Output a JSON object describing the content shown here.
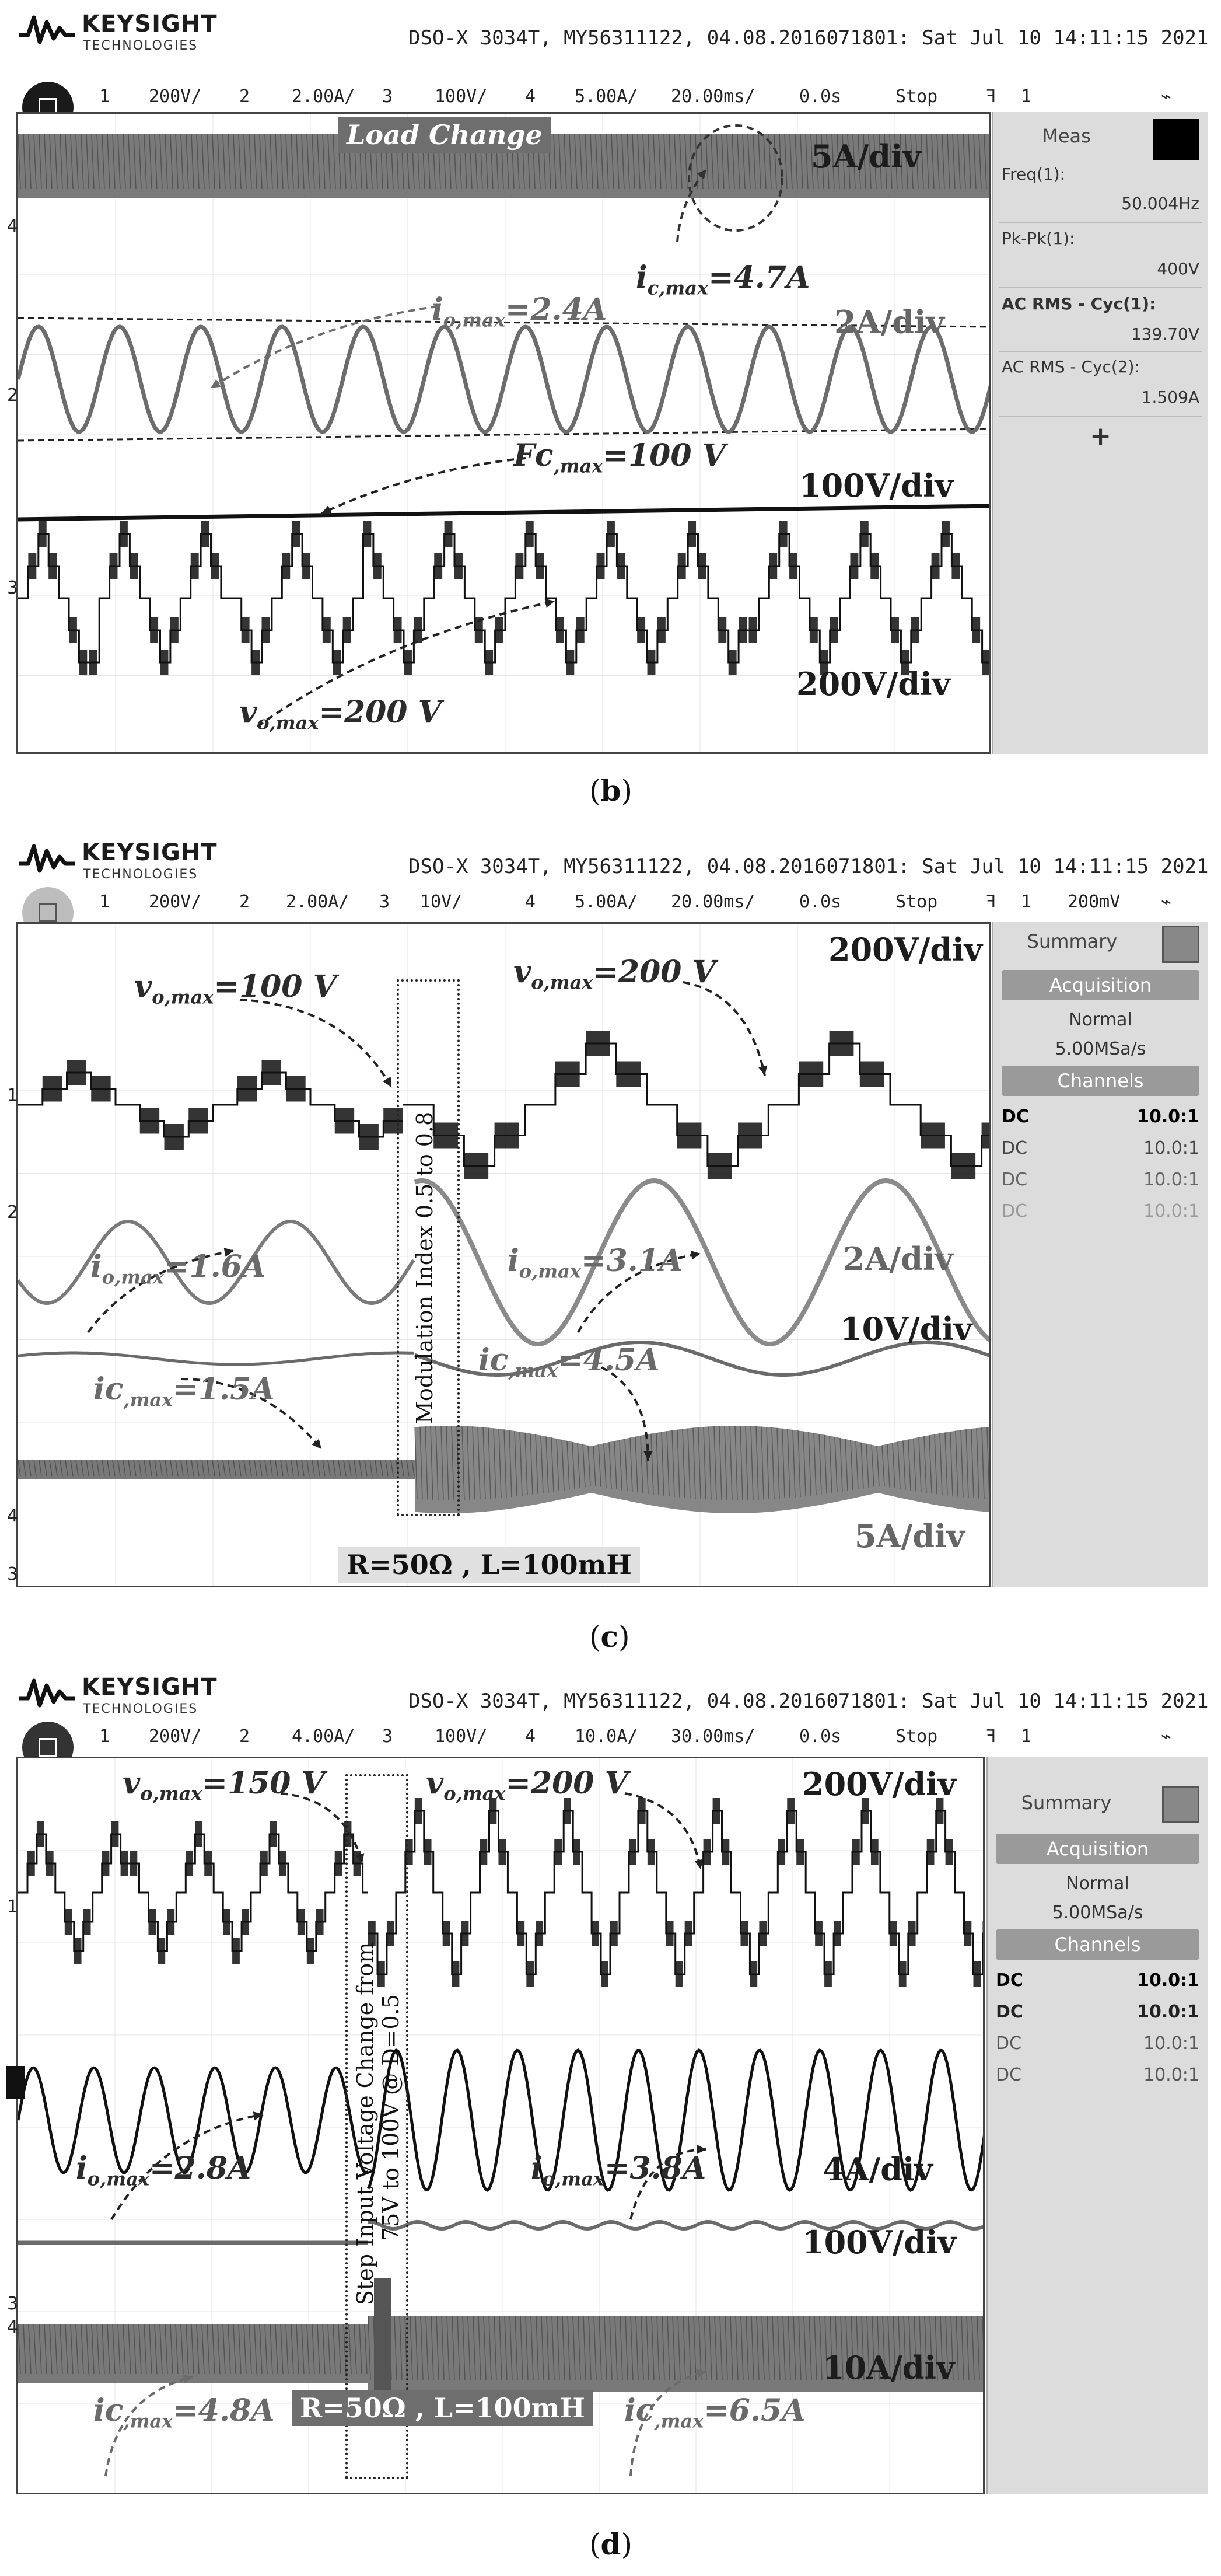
{
  "brand": {
    "name": "KEYSIGHT",
    "sub": "TECHNOLOGIES"
  },
  "panels": [
    {
      "caption": "b",
      "status": "DSO-X 3034T, MY56311122, 04.08.2016071801: Sat Jul 10 14:11:15 2021",
      "channels": {
        "c1": "1",
        "c1_scale": "200V/",
        "c2": "2",
        "c2_scale": "2.00A/",
        "c3": "3",
        "c3_scale": "100V/",
        "c4": "4",
        "c4_scale": "5.00A/",
        "timebase": "20.00ms/",
        "delay": "0.0s",
        "run_state": "Stop",
        "trig": "1"
      },
      "title_box": "Load Change",
      "scales": {
        "s1": "5A/div",
        "s2": "2A/div",
        "s3": "100V/div",
        "s4": "200V/div"
      },
      "annotations": {
        "a1_main": "i",
        "a1_sub": "c,max",
        "a1_val": "=4.7A",
        "a2_main": "i",
        "a2_sub": "o,max",
        "a2_val": "=2.4A",
        "a3_main": "Fc",
        "a3_sub": ",max",
        "a3_val": "=100 V",
        "a4_main": "v",
        "a4_sub": "o,max",
        "a4_val": "=200 V"
      },
      "sidebar": {
        "title": "Meas",
        "freq_label": "Freq(1):",
        "freq_val": "50.004Hz",
        "pk_label": "Pk-Pk(1):",
        "pk_val": "400V",
        "rms1_label": "AC RMS - Cyc(1):",
        "rms1_val": "139.70V",
        "rms2_label": "AC RMS - Cyc(2):",
        "rms2_val": "1.509A",
        "add": "+"
      }
    },
    {
      "caption": "c",
      "status": "DSO-X 3034T, MY56311122, 04.08.2016071801: Sat Jul 10 14:11:15 2021",
      "channels": {
        "c1": "1",
        "c1_scale": "200V/",
        "c2": "2",
        "c2_scale": "2.00A/",
        "c3": "3",
        "c3_scale": "10V/",
        "c4": "4",
        "c4_scale": "5.00A/",
        "timebase": "20.00ms/",
        "delay": "0.0s",
        "run_state": "Stop",
        "trig": "1",
        "trig_level": "200mV"
      },
      "scales": {
        "s1": "200V/div",
        "s2": "2A/div",
        "s3": "10V/div",
        "s4": "5A/div"
      },
      "annotations": {
        "a1_main": "v",
        "a1_sub": "o,max",
        "a1_val": "=100 V",
        "a2_main": "v",
        "a2_sub": "o,max",
        "a2_val": "=200 V",
        "a3_main": "i",
        "a3_sub": "o,max",
        "a3_val": "=1.6A",
        "a4_main": "i",
        "a4_sub": "o,max",
        "a4_val": "=3.1A",
        "a5_main": "ic",
        "a5_sub": ",max",
        "a5_val": "=1.5A",
        "a6_main": "ic",
        "a6_sub": ",max",
        "a6_val": "=4.5A"
      },
      "vertical_note": "Modulation Index 0.5 to 0.8",
      "load_box": "R=50Ω , L=100mH",
      "sidebar": {
        "title": "Summary",
        "acq": "Acquisition",
        "mode": "Normal",
        "rate": "5.00MSa/s",
        "channels": "Channels",
        "rows": [
          {
            "c": "DC",
            "v": "10.0:1"
          },
          {
            "c": "DC",
            "v": "10.0:1"
          },
          {
            "c": "DC",
            "v": "10.0:1"
          },
          {
            "c": "DC",
            "v": "10.0:1"
          }
        ]
      }
    },
    {
      "caption": "d",
      "status": "DSO-X 3034T, MY56311122, 04.08.2016071801: Sat Jul 10 14:11:15 2021",
      "channels": {
        "c1": "1",
        "c1_scale": "200V/",
        "c2": "2",
        "c2_scale": "4.00A/",
        "c3": "3",
        "c3_scale": "100V/",
        "c4": "4",
        "c4_scale": "10.0A/",
        "timebase": "30.00ms/",
        "delay": "0.0s",
        "run_state": "Stop",
        "trig": "1"
      },
      "scales": {
        "s1": "200V/div",
        "s2": "4A/div",
        "s3": "100V/div",
        "s4": "10A/div"
      },
      "annotations": {
        "a1_main": "v",
        "a1_sub": "o,max",
        "a1_val": "=150 V",
        "a2_main": "v",
        "a2_sub": "o,max",
        "a2_val": "=200 V",
        "a3_main": "i",
        "a3_sub": "o,max",
        "a3_val": "=2.8A",
        "a4_main": "i",
        "a4_sub": "o,max",
        "a4_val": "=3.8A",
        "a5_main": "ic",
        "a5_sub": ",max",
        "a5_val": "=4.8A",
        "a6_main": "ic",
        "a6_sub": ",max",
        "a6_val": "=6.5A"
      },
      "vertical_note_1": "Step Input Voltage Change from",
      "vertical_note_2": "75V to 100V @ D=0.5",
      "load_box": "R=50Ω , L=100mH",
      "sidebar": {
        "title": "Summary",
        "acq": "Acquisition",
        "mode": "Normal",
        "rate": "5.00MSa/s",
        "channels": "Channels",
        "rows": [
          {
            "c": "DC",
            "v": "10.0:1"
          },
          {
            "c": "DC",
            "v": "10.0:1"
          },
          {
            "c": "DC",
            "v": "10.0:1"
          },
          {
            "c": "DC",
            "v": "10.0:1"
          }
        ]
      }
    }
  ]
}
